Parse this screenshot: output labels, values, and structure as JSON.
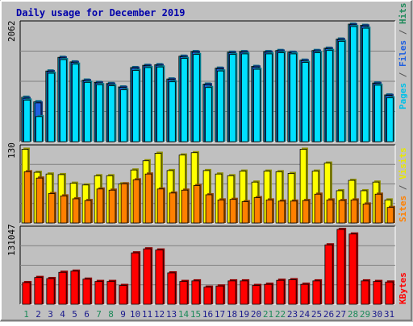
{
  "chart_data": {
    "type": "bar",
    "title": "Daily usage for December 2019",
    "categories": [
      "1",
      "2",
      "3",
      "4",
      "5",
      "6",
      "7",
      "8",
      "9",
      "10",
      "11",
      "12",
      "13",
      "14",
      "15",
      "16",
      "17",
      "18",
      "19",
      "20",
      "21",
      "22",
      "23",
      "24",
      "25",
      "26",
      "27",
      "28",
      "29",
      "30",
      "31"
    ],
    "weekend_days": [
      "1",
      "7",
      "8",
      "14",
      "15",
      "21",
      "22",
      "28",
      "29"
    ],
    "colors": {
      "background": "#c0c0c0",
      "title": "#0000aa",
      "weekday_label": "#1a1a8c",
      "weekend_label": "#1e8a5a",
      "hits": "#00c0e8",
      "files": "#2060e0",
      "pages": "#00e0ff",
      "visits": "#ffff00",
      "sites": "#ff8000",
      "kbytes": "#ff0000"
    },
    "panels": [
      {
        "name": "hits_files_pages",
        "ymax_label": "2062",
        "ymax": 2062,
        "legend": [
          {
            "text": "Pages",
            "color": "#00c0e8"
          },
          {
            "text": " / ",
            "color": "#555555"
          },
          {
            "text": "Files",
            "color": "#2060e0"
          },
          {
            "text": " / ",
            "color": "#555555"
          },
          {
            "text": "Hits",
            "color": "#1e8a5a"
          }
        ],
        "series": [
          {
            "name": "Hits",
            "values": [
              780,
              700,
              1240,
              1480,
              1400,
              1080,
              1040,
              1020,
              960,
              1300,
              1340,
              1350,
              1100,
              1500,
              1580,
              1010,
              1290,
              1570,
              1580,
              1320,
              1580,
              1600,
              1570,
              1430,
              1600,
              1640,
              1800,
              2062,
              2040,
              1030,
              820
            ]
          },
          {
            "name": "Files",
            "values": [
              760,
              680,
              1230,
              1470,
              1390,
              1070,
              1030,
              1010,
              950,
              1290,
              1330,
              1340,
              1090,
              1490,
              1570,
              1000,
              1280,
              1560,
              1570,
              1310,
              1570,
              1590,
              1560,
              1420,
              1590,
              1630,
              1790,
              2050,
              2030,
              1020,
              810
            ]
          },
          {
            "name": "Pages",
            "values": [
              730,
              440,
              1200,
              1440,
              1360,
              1040,
              1000,
              980,
              910,
              1250,
              1300,
              1310,
              1050,
              1460,
              1530,
              950,
              1240,
              1530,
              1540,
              1270,
              1540,
              1560,
              1540,
              1390,
              1560,
              1600,
              1760,
              2020,
              1990,
              990,
              770
            ]
          }
        ]
      },
      {
        "name": "visits_sites",
        "ymax_label": "130",
        "ymax": 130,
        "legend": [
          {
            "text": "Sites",
            "color": "#ff8000"
          },
          {
            "text": " / ",
            "color": "#555555"
          },
          {
            "text": "Visits",
            "color": "#e8e800"
          }
        ],
        "series": [
          {
            "name": "Visits",
            "values": [
              128,
              88,
              85,
              84,
              69,
              66,
              82,
              82,
              68,
              92,
              108,
              121,
              91,
              118,
              122,
              91,
              85,
              82,
              90,
              71,
              90,
              89,
              86,
              128,
              90,
              104,
              56,
              74,
              56,
              71,
              40
            ]
          },
          {
            "name": "Sites",
            "values": [
              89,
              78,
              51,
              47,
              42,
              39,
              59,
              57,
              68,
              75,
              85,
              59,
              52,
              57,
              65,
              49,
              40,
              41,
              37,
              44,
              40,
              38,
              38,
              39,
              50,
              40,
              39,
              40,
              33,
              50,
              27
            ]
          }
        ]
      },
      {
        "name": "kbytes",
        "ymax_label": "131047",
        "ymax": 131047,
        "legend": [
          {
            "text": "KBytes",
            "color": "#ff0000"
          }
        ],
        "series": [
          {
            "name": "KBytes",
            "values": [
              38000,
              47000,
              45000,
              56000,
              58000,
              44000,
              40000,
              40000,
              33000,
              90000,
              97000,
              95000,
              55000,
              40000,
              41000,
              30000,
              32000,
              41000,
              41000,
              33000,
              35000,
              42000,
              43000,
              35000,
              41000,
              104000,
              131047,
              123000,
              41000,
              40000,
              39000
            ]
          }
        ]
      }
    ]
  }
}
